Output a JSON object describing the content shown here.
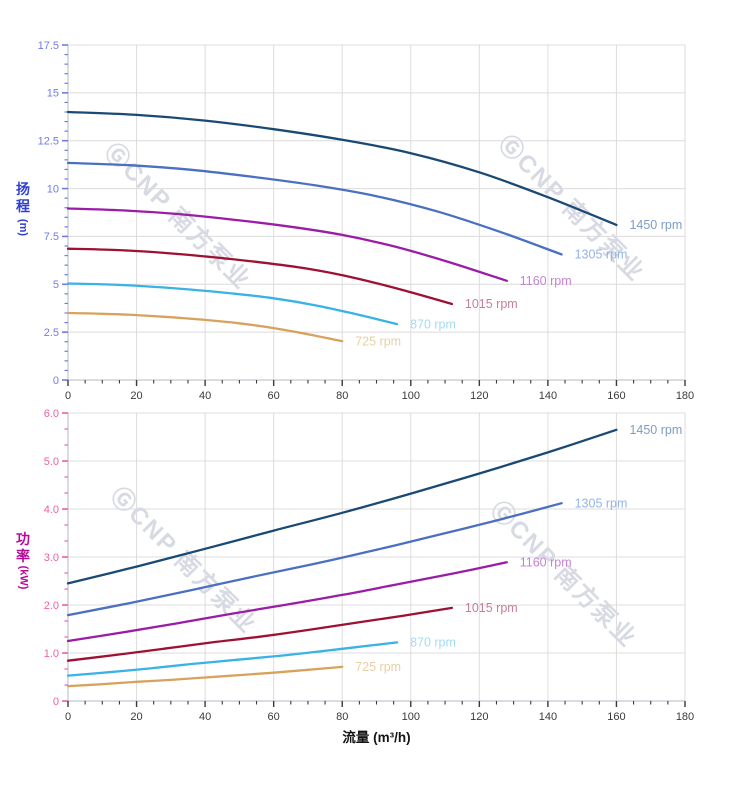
{
  "figure": {
    "x_axis_title": "流量 (m³/h)",
    "watermark": {
      "text": "ⒼCNP 南方泵业",
      "color": "#d8dae3"
    }
  },
  "theme": {
    "background": "#ffffff",
    "grid_color": "#dcdcdc",
    "spine_color": "#c2c6cd",
    "x_tick_color": "#3a3a3a",
    "x_title_color": "#141414"
  },
  "chart_data": [
    {
      "type": "line",
      "title": "",
      "ylabel": "扬程 (m)",
      "xlabel": "流量 (m³/h)",
      "xlim": [
        0,
        180
      ],
      "ylim": [
        0,
        17.5
      ],
      "x_major": 20,
      "x_minor": 5,
      "y_major": 2.5,
      "y_minor": 0.5,
      "grid": true,
      "legend_position": "line-ends",
      "tick_color": "#6e7ce8",
      "ylabel_color": "#2f3fd3",
      "x_tick_values": [
        0,
        20,
        40,
        60,
        80,
        100,
        120,
        140,
        160,
        180
      ],
      "x_tick_labels": [
        "0",
        "20",
        "40",
        "60",
        "80",
        "100",
        "120",
        "140",
        "160",
        "180"
      ],
      "y_tick_values": [
        0,
        2.5,
        5,
        7.5,
        10,
        12.5,
        15,
        17.5
      ],
      "y_tick_labels": [
        "0",
        "2.5",
        "5",
        "7.5",
        "10",
        "12.5",
        "15",
        "17.5"
      ],
      "series": [
        {
          "name": "1450 rpm",
          "rpm": 1450,
          "color": "#1a4a74",
          "label_color": "#7e9cc9",
          "points": [
            [
              0,
              14.0
            ],
            [
              20,
              13.85
            ],
            [
              40,
              13.55
            ],
            [
              60,
              13.1
            ],
            [
              80,
              12.55
            ],
            [
              100,
              11.85
            ],
            [
              120,
              10.85
            ],
            [
              140,
              9.55
            ],
            [
              160,
              8.1
            ]
          ]
        },
        {
          "name": "1305 rpm",
          "rpm": 1305,
          "color": "#4a70c2",
          "label_color": "#94b3e8",
          "points": [
            [
              0,
              11.34
            ],
            [
              18,
              11.22
            ],
            [
              36,
              10.98
            ],
            [
              54,
              10.61
            ],
            [
              72,
              10.17
            ],
            [
              90,
              9.6
            ],
            [
              108,
              8.79
            ],
            [
              126,
              7.74
            ],
            [
              144,
              6.56
            ]
          ]
        },
        {
          "name": "1160 rpm",
          "rpm": 1160,
          "color": "#9b1ca6",
          "label_color": "#c584d2",
          "points": [
            [
              0,
              8.96
            ],
            [
              16,
              8.86
            ],
            [
              32,
              8.67
            ],
            [
              48,
              8.38
            ],
            [
              64,
              8.03
            ],
            [
              80,
              7.58
            ],
            [
              96,
              6.94
            ],
            [
              112,
              6.11
            ],
            [
              128,
              5.18
            ]
          ]
        },
        {
          "name": "1015 rpm",
          "rpm": 1015,
          "color": "#9d1132",
          "label_color": "#c77f92",
          "points": [
            [
              0,
              6.86
            ],
            [
              14,
              6.79
            ],
            [
              28,
              6.64
            ],
            [
              42,
              6.42
            ],
            [
              56,
              6.15
            ],
            [
              70,
              5.81
            ],
            [
              84,
              5.32
            ],
            [
              98,
              4.68
            ],
            [
              112,
              3.97
            ]
          ]
        },
        {
          "name": "870 rpm",
          "rpm": 870,
          "color": "#3ab2e6",
          "label_color": "#a6daf4",
          "points": [
            [
              0,
              5.04
            ],
            [
              12,
              4.99
            ],
            [
              24,
              4.88
            ],
            [
              36,
              4.72
            ],
            [
              48,
              4.52
            ],
            [
              60,
              4.27
            ],
            [
              72,
              3.91
            ],
            [
              84,
              3.44
            ],
            [
              96,
              2.92
            ]
          ]
        },
        {
          "name": "725 rpm",
          "rpm": 725,
          "color": "#d8a25d",
          "label_color": "#e9cfa3",
          "points": [
            [
              0,
              3.5
            ],
            [
              10,
              3.46
            ],
            [
              20,
              3.39
            ],
            [
              30,
              3.28
            ],
            [
              40,
              3.14
            ],
            [
              50,
              2.96
            ],
            [
              60,
              2.71
            ],
            [
              70,
              2.39
            ],
            [
              80,
              2.03
            ]
          ]
        }
      ]
    },
    {
      "type": "line",
      "title": "",
      "ylabel": "功率 (kW)",
      "xlabel": "流量 (m³/h)",
      "xlim": [
        0,
        180
      ],
      "ylim": [
        0,
        6
      ],
      "x_major": 20,
      "x_minor": 5,
      "y_major": 1,
      "y_minor": 0.33333,
      "grid": true,
      "legend_position": "line-ends",
      "tick_color": "#f05fa5",
      "ylabel_color": "#b70b9b",
      "x_tick_values": [
        0,
        20,
        40,
        60,
        80,
        100,
        120,
        140,
        160,
        180
      ],
      "x_tick_labels": [
        "0",
        "20",
        "40",
        "60",
        "80",
        "100",
        "120",
        "140",
        "160",
        "180"
      ],
      "y_tick_values": [
        0,
        1,
        2,
        3,
        4,
        5,
        6
      ],
      "y_tick_labels": [
        "0",
        "1.0",
        "2.0",
        "3.0",
        "4.0",
        "5.0",
        "6.0"
      ],
      "series": [
        {
          "name": "1450 rpm",
          "rpm": 1450,
          "color": "#1a4a74",
          "label_color": "#7e9cc9",
          "points": [
            [
              0,
              2.45
            ],
            [
              20,
              2.8
            ],
            [
              40,
              3.17
            ],
            [
              60,
              3.55
            ],
            [
              80,
              3.92
            ],
            [
              100,
              4.32
            ],
            [
              120,
              4.74
            ],
            [
              140,
              5.18
            ],
            [
              160,
              5.65
            ]
          ]
        },
        {
          "name": "1305 rpm",
          "rpm": 1305,
          "color": "#4a70c2",
          "label_color": "#94b3e8",
          "points": [
            [
              0,
              1.79
            ],
            [
              18,
              2.04
            ],
            [
              36,
              2.31
            ],
            [
              54,
              2.59
            ],
            [
              72,
              2.86
            ],
            [
              90,
              3.15
            ],
            [
              108,
              3.46
            ],
            [
              126,
              3.78
            ],
            [
              144,
              4.12
            ]
          ]
        },
        {
          "name": "1160 rpm",
          "rpm": 1160,
          "color": "#9b1ca6",
          "label_color": "#c584d2",
          "points": [
            [
              0,
              1.25
            ],
            [
              16,
              1.43
            ],
            [
              32,
              1.62
            ],
            [
              48,
              1.82
            ],
            [
              64,
              2.01
            ],
            [
              80,
              2.21
            ],
            [
              96,
              2.43
            ],
            [
              112,
              2.65
            ],
            [
              128,
              2.89
            ]
          ]
        },
        {
          "name": "1015 rpm",
          "rpm": 1015,
          "color": "#9d1132",
          "label_color": "#c77f92",
          "points": [
            [
              0,
              0.84
            ],
            [
              14,
              0.96
            ],
            [
              28,
              1.09
            ],
            [
              42,
              1.22
            ],
            [
              56,
              1.34
            ],
            [
              70,
              1.48
            ],
            [
              84,
              1.63
            ],
            [
              98,
              1.78
            ],
            [
              112,
              1.94
            ]
          ]
        },
        {
          "name": "870 rpm",
          "rpm": 870,
          "color": "#3ab2e6",
          "label_color": "#a6daf4",
          "points": [
            [
              0,
              0.53
            ],
            [
              12,
              0.6
            ],
            [
              24,
              0.68
            ],
            [
              36,
              0.77
            ],
            [
              48,
              0.85
            ],
            [
              60,
              0.93
            ],
            [
              72,
              1.02
            ],
            [
              84,
              1.12
            ],
            [
              96,
              1.22
            ]
          ]
        },
        {
          "name": "725 rpm",
          "rpm": 725,
          "color": "#d8a25d",
          "label_color": "#e9cfa3",
          "points": [
            [
              0,
              0.31
            ],
            [
              10,
              0.35
            ],
            [
              20,
              0.4
            ],
            [
              30,
              0.44
            ],
            [
              40,
              0.49
            ],
            [
              50,
              0.54
            ],
            [
              60,
              0.59
            ],
            [
              70,
              0.65
            ],
            [
              80,
              0.71
            ]
          ]
        }
      ]
    }
  ]
}
